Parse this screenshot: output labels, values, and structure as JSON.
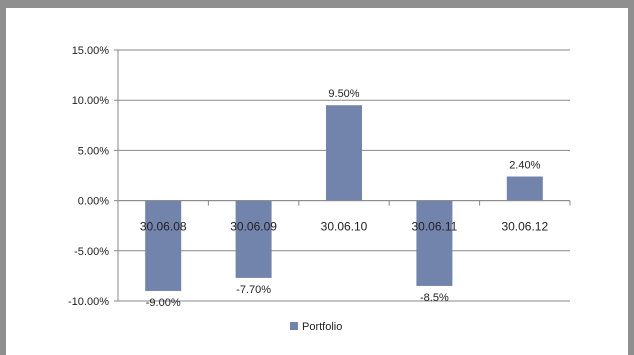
{
  "chart_data": {
    "type": "bar",
    "title": "",
    "xlabel": "",
    "ylabel": "",
    "categories": [
      "30.06.08",
      "30.06.09",
      "30.06.10",
      "30.06.11",
      "30.06.12"
    ],
    "series": [
      {
        "name": "Portfolio",
        "values": [
          -9.0,
          -7.7,
          9.5,
          -8.5,
          2.4
        ],
        "data_labels": [
          "-9.00%",
          "-7.70%",
          "9.50%",
          "-8.5%",
          "2.40%"
        ]
      }
    ],
    "ylim": [
      -10,
      15
    ],
    "y_ticks": [
      15,
      10,
      5,
      0,
      -5,
      -10
    ],
    "y_tick_labels": [
      "15.00%",
      "10.00%",
      "5.00%",
      "0.00%",
      "-5.00%",
      "-10.00%"
    ],
    "grid": true,
    "legend": "bottom",
    "colors": {
      "bar": "#7384ac",
      "axis": "#8a8a8a",
      "grid": "#8a8a8a",
      "background": "#ffffff",
      "frame": "#8f8f8f"
    }
  }
}
